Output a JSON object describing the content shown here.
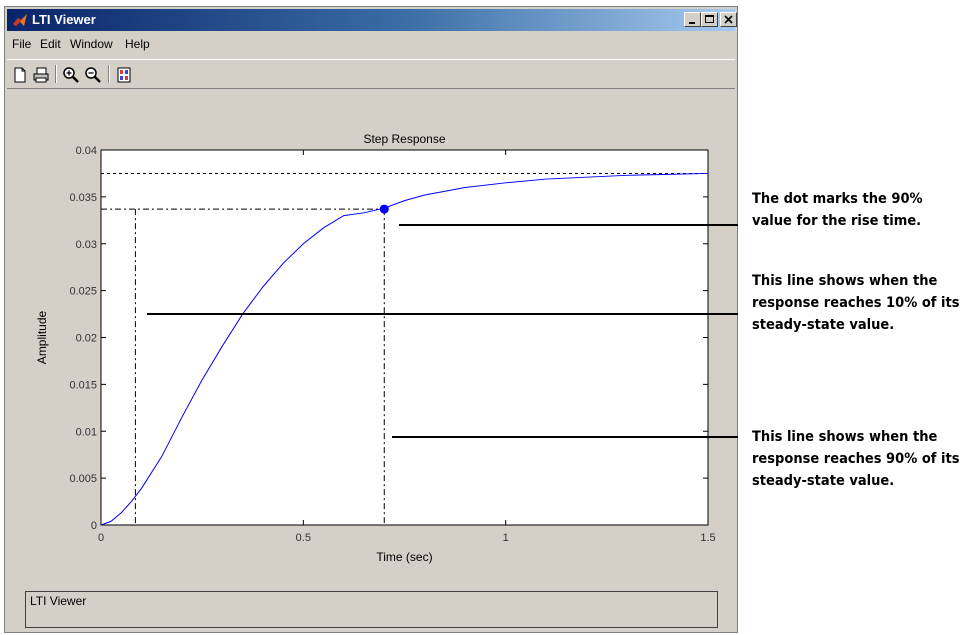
{
  "window": {
    "title": "LTI Viewer",
    "icon": "matlab-logo-icon"
  },
  "title_buttons": [
    {
      "name": "minimize",
      "icon": "minimize-icon"
    },
    {
      "name": "maximize",
      "icon": "maximize-icon"
    },
    {
      "name": "close",
      "icon": "close-icon"
    }
  ],
  "menu": {
    "file": "File",
    "edit": "Edit",
    "window": "Window",
    "help": "Help"
  },
  "toolbar": [
    {
      "name": "new",
      "icon": "new-document-icon"
    },
    {
      "name": "print",
      "icon": "printer-icon"
    },
    {
      "name": "zoom-in",
      "icon": "zoom-in-icon"
    },
    {
      "name": "zoom-out",
      "icon": "zoom-out-icon"
    },
    {
      "name": "plot-configuration",
      "icon": "plot-config-icon"
    }
  ],
  "status": {
    "text": "LTI Viewer"
  },
  "chart_data": {
    "type": "line",
    "title": "Step Response",
    "xlabel": "Time (sec)",
    "ylabel": "Amplitude",
    "xlim": [
      0,
      1.5
    ],
    "ylim": [
      0,
      0.04
    ],
    "x_ticks": [
      "0",
      "0.5",
      "1",
      "1.5"
    ],
    "x_tick_values": [
      0,
      0.5,
      1,
      1.5
    ],
    "y_ticks": [
      "0",
      "0.005",
      "0.01",
      "0.015",
      "0.02",
      "0.025",
      "0.03",
      "0.035",
      "0.04"
    ],
    "y_tick_values": [
      0,
      0.005,
      0.01,
      0.015,
      0.02,
      0.025,
      0.03,
      0.035,
      0.04
    ],
    "grid": false,
    "series": [
      {
        "color": "#0000ff",
        "x": [
          0,
          0.025,
          0.05,
          0.075,
          0.1,
          0.15,
          0.2,
          0.25,
          0.3,
          0.35,
          0.4,
          0.45,
          0.5,
          0.55,
          0.6,
          0.65,
          0.7,
          0.75,
          0.8,
          0.9,
          1.0,
          1.1,
          1.2,
          1.3,
          1.4,
          1.5
        ],
        "y": [
          0,
          0.0004,
          0.0013,
          0.0025,
          0.0039,
          0.0073,
          0.0115,
          0.0155,
          0.0191,
          0.0225,
          0.0254,
          0.0279,
          0.03,
          0.0317,
          0.033,
          0.0333,
          0.0338,
          0.0346,
          0.0352,
          0.036,
          0.0365,
          0.0369,
          0.0371,
          0.0373,
          0.0374,
          0.0375
        ]
      }
    ],
    "steady_state": 0.0375,
    "rise_time_start": 0.085,
    "rise_time_end": 0.7,
    "rise_time_90_value": 0.0337,
    "marker_color": "#0000ff"
  },
  "callouts": [
    {
      "lines": [
        "The dot marks the 90%",
        "value for the rise time."
      ]
    },
    {
      "lines": [
        "This line shows when the",
        "response reaches 10% of its",
        "steady-state value."
      ]
    },
    {
      "lines": [
        "This line shows when the",
        "response reaches 90% of its",
        "steady-state value."
      ]
    }
  ]
}
